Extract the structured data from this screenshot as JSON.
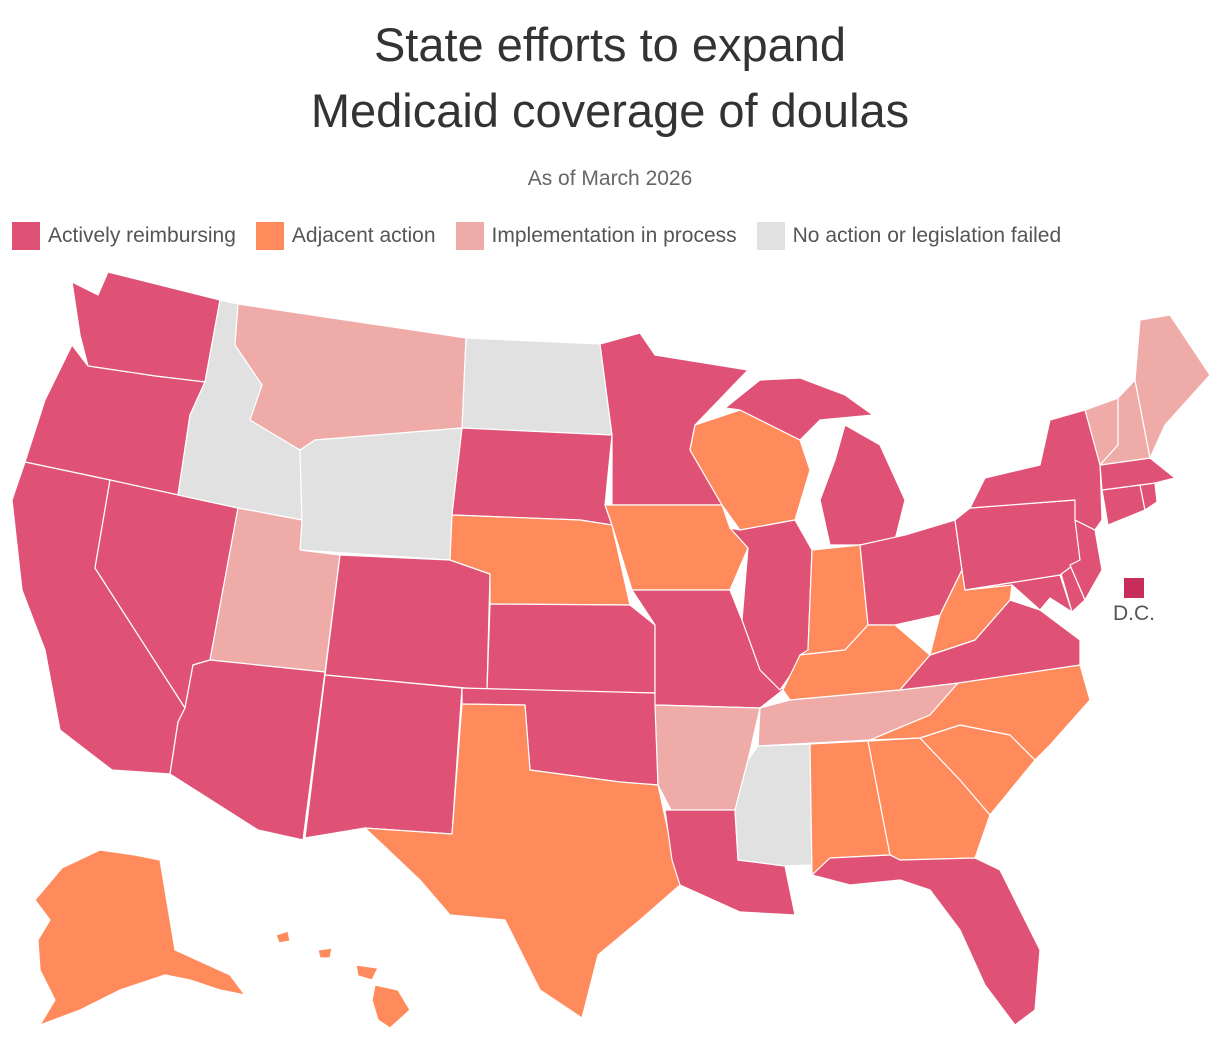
{
  "title_lines": [
    "State efforts to expand",
    "Medicaid coverage of doulas"
  ],
  "subtitle": "As of March 2026",
  "legend": [
    {
      "key": "active",
      "label": "Actively reimbursing",
      "color": "#e05275"
    },
    {
      "key": "adjacent",
      "label": "Adjacent action",
      "color": "#ff8a5c"
    },
    {
      "key": "implementation",
      "label": "Implementation in process",
      "color": "#eeaba8"
    },
    {
      "key": "none",
      "label": "No action or legislation failed",
      "color": "#e0e1e0"
    }
  ],
  "dc": {
    "label": "D.C.",
    "status": "active",
    "color": "#c72c5a"
  },
  "states": {
    "WA": "active",
    "OR": "active",
    "CA": "active",
    "NV": "active",
    "ID": "none",
    "MT": "implementation",
    "WY": "none",
    "UT": "implementation",
    "AZ": "active",
    "NM": "active",
    "CO": "active",
    "ND": "none",
    "SD": "active",
    "NE": "adjacent",
    "KS": "active",
    "OK": "active",
    "TX": "adjacent",
    "MN": "active",
    "IA": "adjacent",
    "MO": "active",
    "AR": "implementation",
    "LA": "active",
    "WI": "adjacent",
    "IL": "active",
    "MI": "active",
    "IN": "adjacent",
    "OH": "active",
    "KY": "adjacent",
    "TN": "implementation",
    "MS": "none",
    "AL": "adjacent",
    "GA": "adjacent",
    "FL": "active",
    "SC": "adjacent",
    "NC": "adjacent",
    "VA": "active",
    "WV": "adjacent",
    "MD": "active",
    "DE": "active",
    "PA": "active",
    "NJ": "active",
    "NY": "active",
    "CT": "active",
    "RI": "active",
    "MA": "active",
    "VT": "implementation",
    "NH": "implementation",
    "ME": "implementation",
    "AK": "adjacent",
    "HI": "adjacent"
  }
}
